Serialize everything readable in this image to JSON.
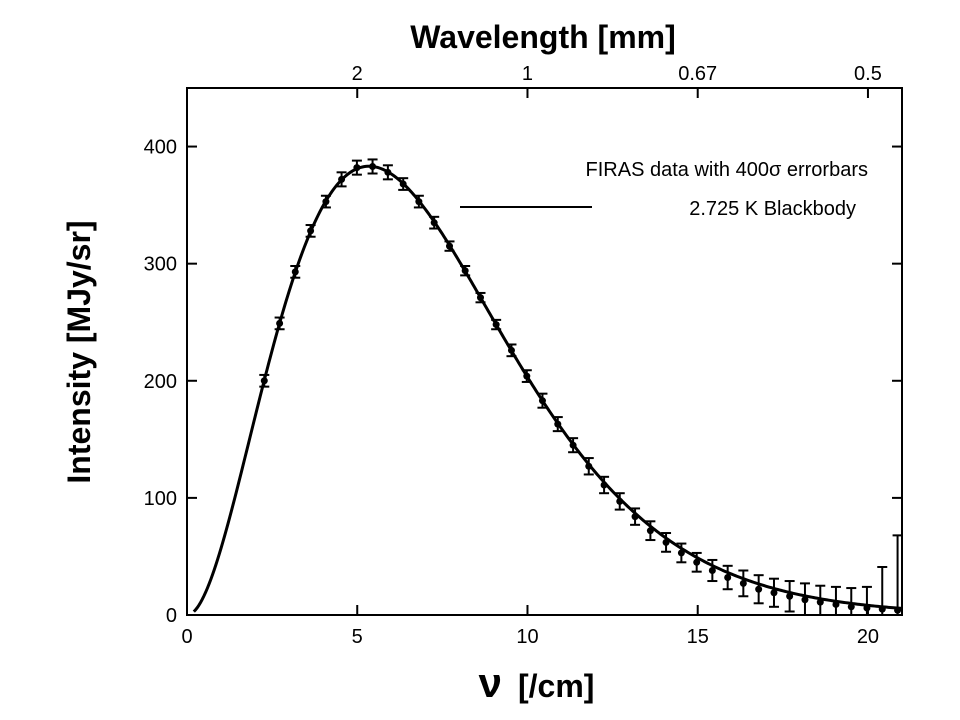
{
  "chart_data": {
    "type": "scatter",
    "title": "",
    "xlabel_symbol": "ν",
    "xlabel_unit": "[/cm]",
    "ylabel": "Intensity [MJy/sr]",
    "top_xlabel": "Wavelength [mm]",
    "xlim": [
      0,
      21
    ],
    "ylim": [
      0,
      450
    ],
    "x_ticks": [
      0,
      5,
      10,
      15,
      20
    ],
    "x_tick_labels": [
      "0",
      "5",
      "10",
      "15",
      "20"
    ],
    "y_ticks": [
      0,
      100,
      200,
      300,
      400
    ],
    "y_tick_labels": [
      "0",
      "100",
      "200",
      "300",
      "400"
    ],
    "top_ticks": [
      {
        "wavenumber": 5,
        "label": "2"
      },
      {
        "wavenumber": 10,
        "label": "1"
      },
      {
        "wavenumber": 15,
        "label": "0.67"
      },
      {
        "wavenumber": 20,
        "label": "0.5"
      }
    ],
    "grid": false,
    "legend_position": "top-right",
    "series": [
      {
        "name": "FIRAS data with 400σ errorbars",
        "kind": "points-with-errorbars",
        "x": [
          2.27,
          2.72,
          3.18,
          3.63,
          4.08,
          4.54,
          4.99,
          5.45,
          5.9,
          6.35,
          6.81,
          7.26,
          7.71,
          8.17,
          8.62,
          9.08,
          9.53,
          9.98,
          10.44,
          10.89,
          11.34,
          11.8,
          12.25,
          12.71,
          13.16,
          13.61,
          14.07,
          14.52,
          14.97,
          15.43,
          15.88,
          16.34,
          16.79,
          17.24,
          17.7,
          18.15,
          18.6,
          19.06,
          19.51,
          19.97,
          20.42,
          20.87
        ],
        "y": [
          200,
          249,
          293,
          328,
          353,
          372,
          382,
          383,
          378,
          368,
          353,
          335,
          315,
          294,
          271,
          248,
          226,
          204,
          183,
          163,
          145,
          127,
          111,
          97,
          84,
          72,
          62,
          53,
          45,
          38,
          32,
          27,
          22,
          19,
          16,
          13,
          11,
          9,
          7,
          6,
          5,
          4
        ],
        "yerr": [
          5,
          5,
          5,
          5,
          5,
          6,
          6,
          6,
          6,
          5,
          5,
          5,
          4,
          4,
          4,
          4,
          5,
          5,
          6,
          6,
          6,
          7,
          7,
          7,
          7,
          8,
          8,
          8,
          8,
          9,
          10,
          11,
          12,
          12,
          13,
          14,
          14,
          15,
          16,
          18,
          36,
          64
        ]
      },
      {
        "name": "2.725 K Blackbody",
        "kind": "line",
        "temperature_K": 2.725,
        "x_range": [
          0.2,
          21
        ]
      }
    ]
  }
}
